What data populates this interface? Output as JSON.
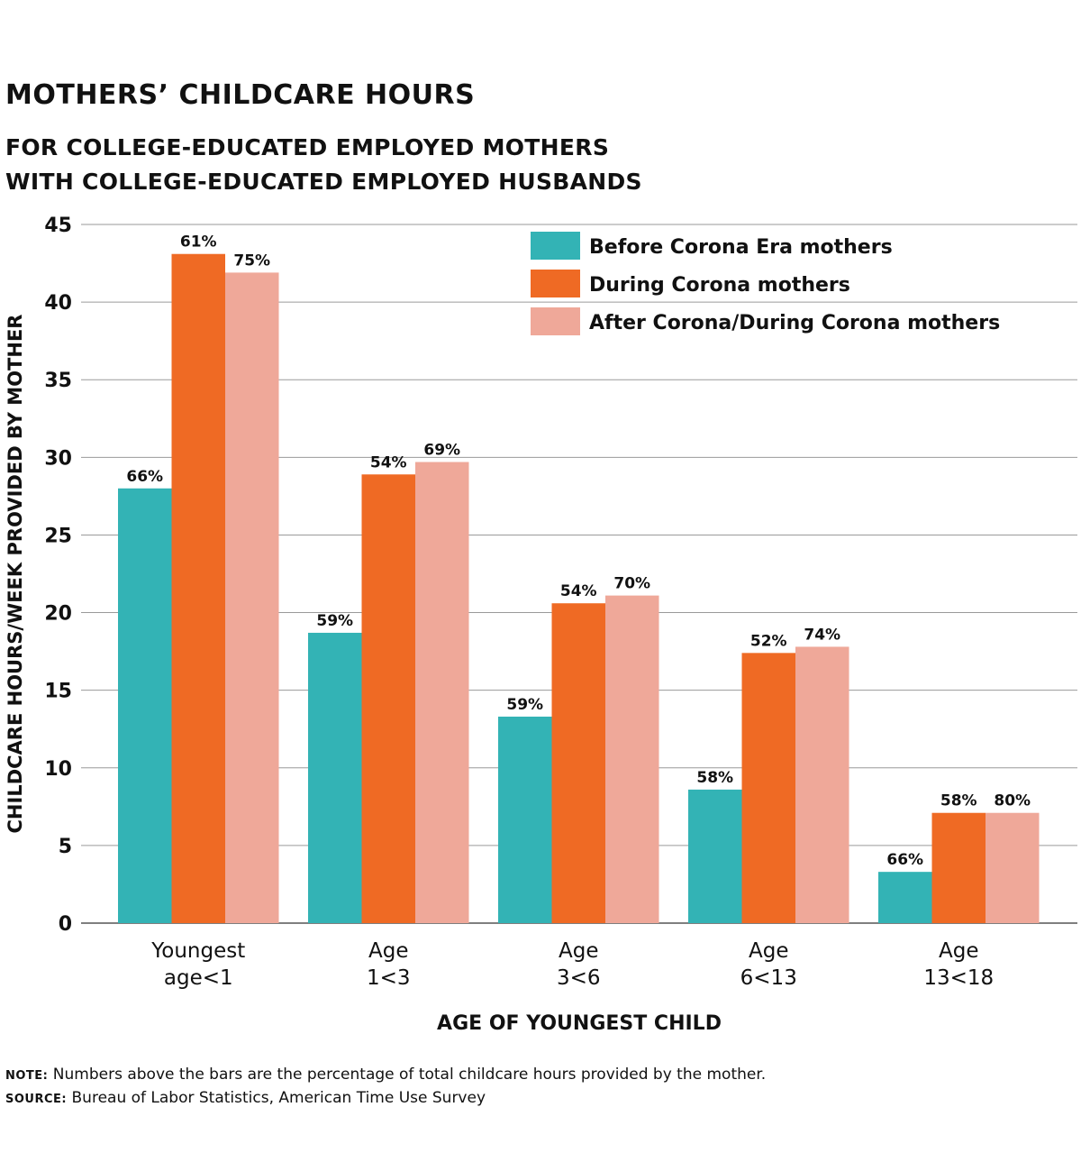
{
  "title": "MOTHERS’ CHILDCARE HOURS",
  "subtitle_lines": [
    "FOR COLLEGE-EDUCATED EMPLOYED MOTHERS",
    "WITH COLLEGE-EDUCATED EMPLOYED HUSBANDS"
  ],
  "note": {
    "note_label": "NOTE:",
    "note_text": "Numbers above the bars are the percentage of total childcare hours provided by the mother.",
    "source_label": "SOURCE:",
    "source_text": "Bureau of Labor Statistics, American Time Use Survey"
  },
  "chart_data": {
    "type": "bar",
    "ylabel": "CHILDCARE HOURS/WEEK PROVIDED BY MOTHER",
    "xlabel": "AGE OF YOUNGEST CHILD",
    "ylim": [
      0,
      45
    ],
    "yticks": [
      0,
      5,
      10,
      15,
      20,
      25,
      30,
      35,
      40,
      45
    ],
    "grid": true,
    "legend_position": "top-right",
    "categories": [
      [
        "Youngest",
        "age<1"
      ],
      [
        "Age",
        "1<3"
      ],
      [
        "Age",
        "3<6"
      ],
      [
        "Age",
        "6<13"
      ],
      [
        "Age",
        "13<18"
      ]
    ],
    "series": [
      {
        "name": "Before Corona Era mothers",
        "color": "#33b3b5",
        "values": [
          28.0,
          18.7,
          13.3,
          8.6,
          3.3
        ],
        "labels": [
          "66%",
          "59%",
          "59%",
          "58%",
          "66%"
        ]
      },
      {
        "name": "During Corona mothers",
        "color": "#ef6a24",
        "values": [
          43.1,
          28.9,
          20.6,
          17.4,
          7.1
        ],
        "labels": [
          "61%",
          "54%",
          "54%",
          "52%",
          "58%"
        ]
      },
      {
        "name": "After Corona/During Corona mothers",
        "color": "#efa899",
        "values": [
          41.9,
          29.7,
          21.1,
          17.8,
          7.1
        ],
        "labels": [
          "75%",
          "69%",
          "70%",
          "74%",
          "80%"
        ]
      }
    ]
  }
}
